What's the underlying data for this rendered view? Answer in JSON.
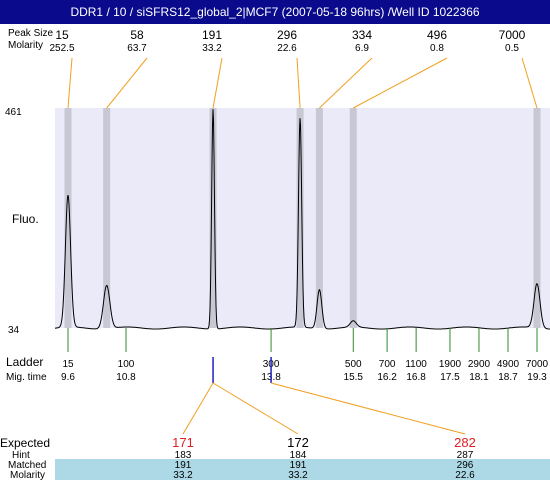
{
  "window": {
    "title": "DDR1 / 10 / siSFRS12_global_2|MCF7 (2007-05-18 96hrs) /Well ID 1022366"
  },
  "colors": {
    "title_bar": "#0a0a8c",
    "plot_bg": "#eaeaf8",
    "peak_band": "#c8c8d4",
    "peak_connector": "#f0a020",
    "ladder_tick": "#2e8b2e",
    "ladder_cursor": "#2020c0",
    "expected_red": "#e02020",
    "matched_band": "#add8e6",
    "trace": "#000000"
  },
  "header_labels": {
    "peak_size": "Peak Size",
    "molarity": "Molarity",
    "fluo": "Fluo.",
    "ladder": "Ladder",
    "mig_time": "Mig. time",
    "expected": "Expected",
    "hint": "Hint",
    "matched": "Matched",
    "molarity_bottom": "Molarity"
  },
  "chart_data": {
    "type": "line",
    "y_axis": {
      "min": 34,
      "max": 461,
      "tick_labels": [
        "461",
        "34"
      ],
      "label": "Fluo."
    },
    "x_axis": {
      "unit": "migration time",
      "min": 9.1,
      "max": 19.6
    },
    "peaks": [
      {
        "size": "15",
        "molarity": "252.5",
        "time": 9.6,
        "height": 290
      },
      {
        "size": "58",
        "molarity": "63.7",
        "time": 10.4,
        "height": 118
      },
      {
        "size": "191",
        "molarity": "33.2",
        "time": 12.6,
        "height": 461
      },
      {
        "size": "296",
        "molarity": "22.6",
        "time": 14.4,
        "height": 440
      },
      {
        "size": "334",
        "molarity": "6.9",
        "time": 14.8,
        "height": 110
      },
      {
        "size": "496",
        "molarity": "0.8",
        "time": 15.5,
        "height": 46
      },
      {
        "size": "7000",
        "molarity": "0.5",
        "time": 19.3,
        "height": 120
      }
    ],
    "ladder": [
      {
        "size": "15",
        "time": "9.6",
        "t": 9.6
      },
      {
        "size": "100",
        "time": "10.8",
        "t": 10.8
      },
      {
        "size": "300",
        "time": "13.8",
        "t": 13.8
      },
      {
        "size": "500",
        "time": "15.5",
        "t": 15.5
      },
      {
        "size": "700",
        "time": "16.2",
        "t": 16.2
      },
      {
        "size": "1100",
        "time": "16.8",
        "t": 16.8
      },
      {
        "size": "1900",
        "time": "17.5",
        "t": 17.5
      },
      {
        "size": "2900",
        "time": "18.1",
        "t": 18.1
      },
      {
        "size": "4900",
        "time": "18.7",
        "t": 18.7
      },
      {
        "size": "7000",
        "time": "19.3",
        "t": 19.3
      }
    ],
    "expected": [
      {
        "expected": "171",
        "hint": "183",
        "matched": "191",
        "molarity": "33.2",
        "from_time": 12.6,
        "highlight": true
      },
      {
        "expected": "172",
        "hint": "184",
        "matched": "191",
        "molarity": "33.2",
        "from_time": 12.6,
        "highlight": false
      },
      {
        "expected": "282",
        "hint": "287",
        "matched": "296",
        "molarity": "22.6",
        "from_time": 13.8,
        "highlight": true
      }
    ]
  }
}
